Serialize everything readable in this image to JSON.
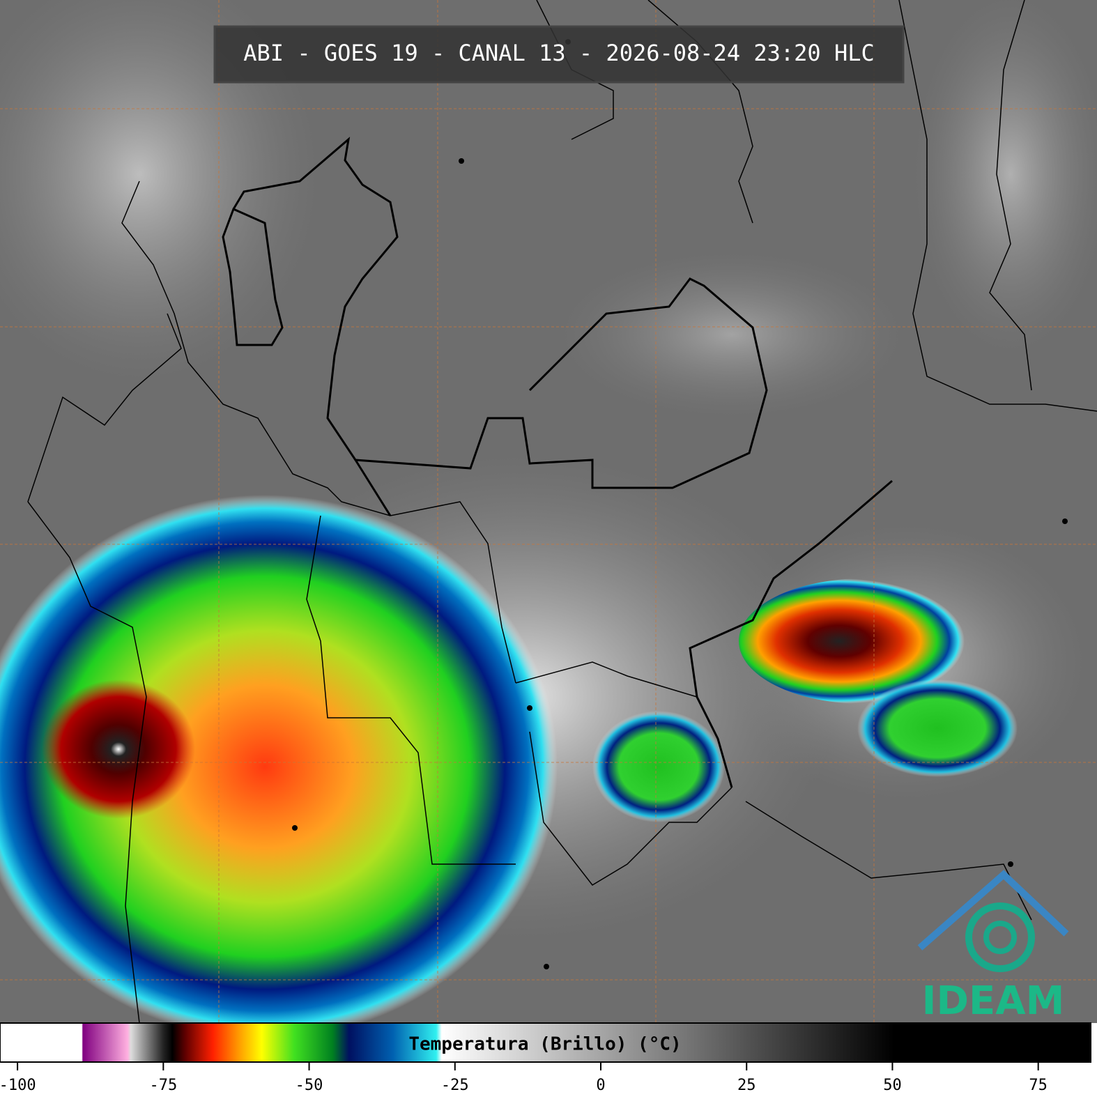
{
  "title": "ABI - GOES 19 - CANAL 13 - 2026-08-24 23:20 HLC",
  "colorbar": {
    "label": "Temperatura (Brillo) (°C)",
    "lim": [
      -103,
      84
    ],
    "ticks": [
      -100,
      -75,
      -50,
      -25,
      0,
      25,
      50,
      75
    ]
  },
  "logo": {
    "text": "IDEAM"
  }
}
